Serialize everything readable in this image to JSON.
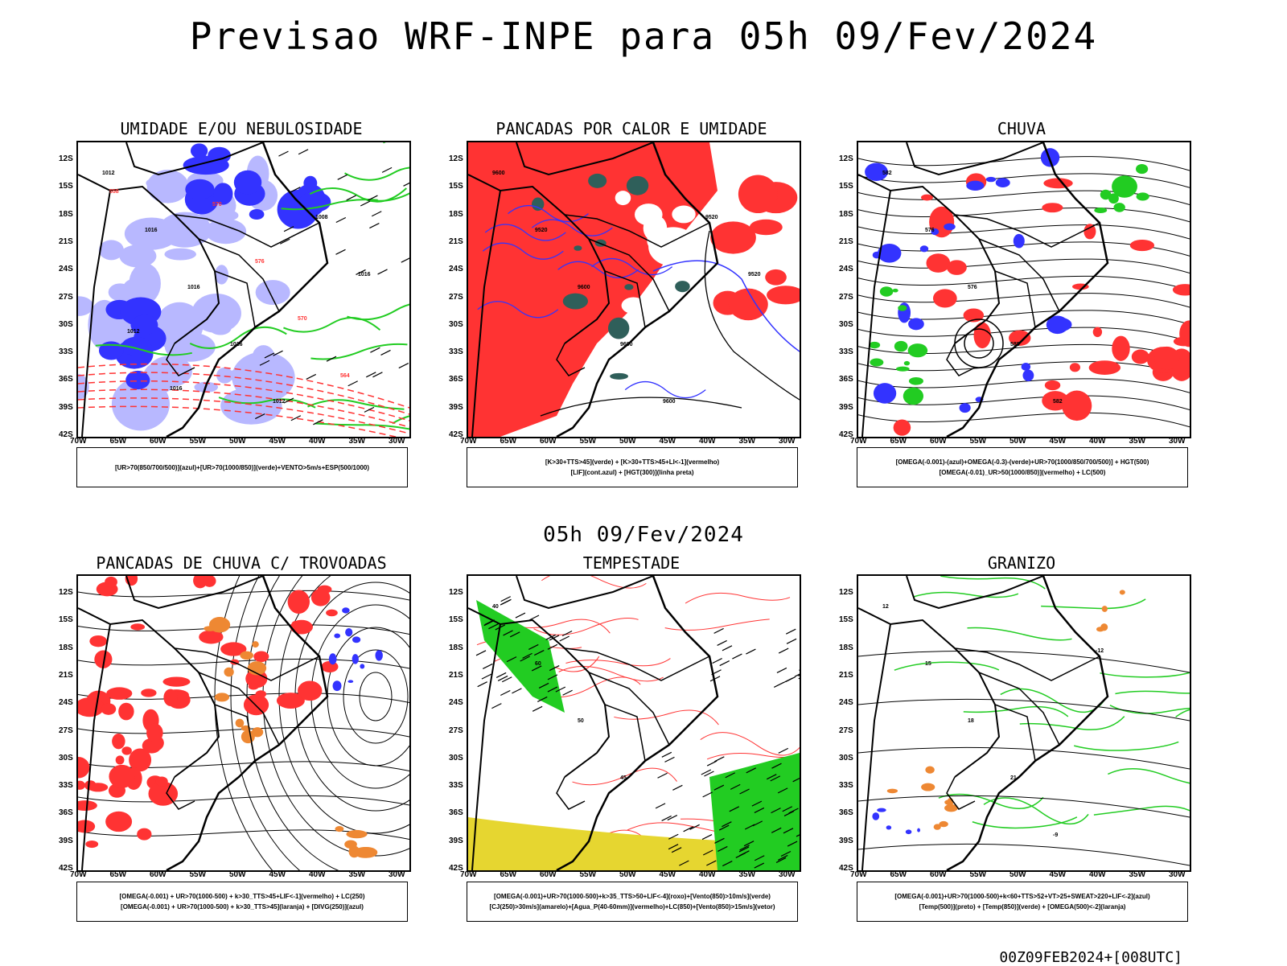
{
  "header": {
    "title": "Previsao WRF-INPE  para 05h 09/Fev/2024"
  },
  "middle": {
    "time_label": "05h 09/Fev/2024"
  },
  "footer": {
    "run_label": "00Z09FEB2024+[008UTC]"
  },
  "axes": {
    "lat_ticks": [
      "12S",
      "15S",
      "18S",
      "21S",
      "24S",
      "27S",
      "30S",
      "33S",
      "36S",
      "39S",
      "42S"
    ],
    "lon_ticks": [
      "70W",
      "65W",
      "60W",
      "55W",
      "50W",
      "45W",
      "40W",
      "35W",
      "30W"
    ]
  },
  "panels": [
    {
      "title": "UMIDADE E/OU NEBULOSIDADE",
      "legend": [
        "[UR>70(850/700/500)](azul)+[UR>70(1000/850)](verde)+VENTO>5m/s+ESP(500/1000)"
      ],
      "contour_labels": [
        "1012",
        "1016",
        "1016",
        "1016",
        "1012",
        "1008",
        "1016",
        "1012",
        "1016",
        "570",
        "576",
        "570",
        "564",
        "558"
      ]
    },
    {
      "title": "PANCADAS POR CALOR E UMIDADE",
      "legend": [
        "[K>30+TTS>45](verde)  +  [K>30+TTS>45+LI<-1](vermelho)",
        "[LIF](cont.azul)  +  [HGT(300)](linha preta)"
      ],
      "contour_labels": [
        "9600",
        "9520",
        "9600",
        "9600",
        "9600",
        "9520",
        "9520"
      ]
    },
    {
      "title": "CHUVA",
      "legend": [
        "[OMEGA(-0.001)-(azul)+OMEGA(-0.3)-(verde)+UR>70(1000/850/700/500)]  +  HGT(500)",
        "[OMEGA(-0.01)_UR>50(1000/850)](vermelho)  +  LC(500)"
      ],
      "contour_labels": [
        "582",
        "576",
        "576",
        "588",
        "582"
      ]
    },
    {
      "title": "PANCADAS DE CHUVA C/ TROVOADAS",
      "legend": [
        "[OMEGA(-0.001)  +  UR>70(1000-500)  +  k>30_TTS>45+LIF<-1](vermelho)  +  LC(250)",
        "[OMEGA(-0.001)  +  UR>70(1000-500)  +  k>30_TTS>45](laranja)  +  [DIVG(250)](azul)"
      ],
      "contour_labels": []
    },
    {
      "title": "TEMPESTADE",
      "legend": [
        "[OMEGA(-0.001)+UR>70(1000-500)+k>35_TTS>50+LIF<-4](roxo)+[Vento(850)>10m/s](verde)",
        "[CJ(250)>30m/s](amarelo)+[Agua_P(40-60mm)](vermelho)+LC(850)+[Vento(850)>15m/s](vetor)"
      ],
      "contour_labels": [
        "40",
        "60",
        "50",
        "45"
      ]
    },
    {
      "title": "GRANIZO",
      "legend": [
        "[OMEGA(-0.001)+UR>70(1000-500)+k<60+TTS>52+VT>25+SWEAT>220+LIF<-2](azul)",
        "[Temp(500)](preto)  +  [Temp(850)](verde)  +  [OMEGA(500)<-2](laranja)"
      ],
      "contour_labels": [
        "12",
        "15",
        "18",
        "21",
        "-9",
        "-12"
      ]
    }
  ],
  "colors": {
    "blue": "#3333ff",
    "lightblue": "#b8b8ff",
    "green": "#22cc22",
    "red": "#ff3333",
    "orange": "#ee8833",
    "yellow": "#e6d630",
    "darkteal": "#2f5f5a"
  }
}
